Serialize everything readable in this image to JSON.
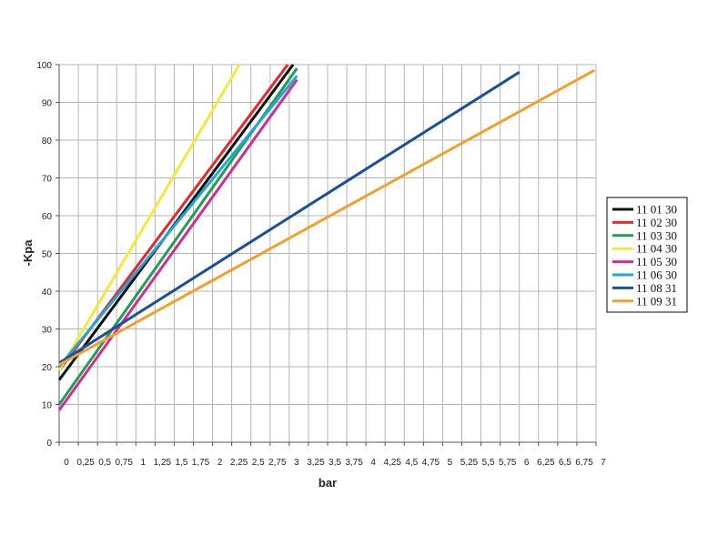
{
  "chart_data": {
    "type": "line",
    "title": "",
    "xlabel": "bar",
    "ylabel": "-Kpa",
    "xlim": [
      0,
      7
    ],
    "ylim": [
      0,
      100
    ],
    "grid": true,
    "legend_position": "right",
    "x_ticks": [
      "0",
      "0,25",
      "0,5",
      "0,75",
      "1",
      "1,25",
      "1,5",
      "1,75",
      "2",
      "2,25",
      "2,5",
      "2,75",
      "3",
      "3,25",
      "3,5",
      "3,75",
      "4",
      "4,25",
      "4,5",
      "4,75",
      "5",
      "5,25",
      "5,5",
      "5,75",
      "6",
      "6,25",
      "6,5",
      "6,75",
      "7"
    ],
    "y_ticks": [
      "0",
      "10",
      "20",
      "30",
      "40",
      "50",
      "60",
      "70",
      "80",
      "90",
      "100"
    ],
    "series": [
      {
        "name": "11 01 30",
        "color": "#111111",
        "x": [
          0,
          3.05
        ],
        "y": [
          16.5,
          100
        ]
      },
      {
        "name": "11 02 30",
        "color": "#e8262b",
        "x": [
          0,
          2.98
        ],
        "y": [
          19,
          100
        ]
      },
      {
        "name": "11 03 30",
        "color": "#1fa050",
        "x": [
          0,
          3.1
        ],
        "y": [
          10,
          99
        ]
      },
      {
        "name": "11 04 30",
        "color": "#f2ea3a",
        "x": [
          0,
          2.35
        ],
        "y": [
          19,
          100
        ]
      },
      {
        "name": "11 05 30",
        "color": "#d42a96",
        "x": [
          0,
          3.1
        ],
        "y": [
          8.5,
          96
        ]
      },
      {
        "name": "11 06 30",
        "color": "#21a6d8",
        "x": [
          0,
          3.1
        ],
        "y": [
          20,
          97
        ]
      },
      {
        "name": "11 08 31",
        "color": "#1a4f9c",
        "x": [
          0,
          6
        ],
        "y": [
          21,
          98
        ]
      },
      {
        "name": "11 09 31",
        "color": "#f2a02a",
        "x": [
          0,
          6.98
        ],
        "y": [
          20.5,
          98.5
        ]
      }
    ]
  }
}
